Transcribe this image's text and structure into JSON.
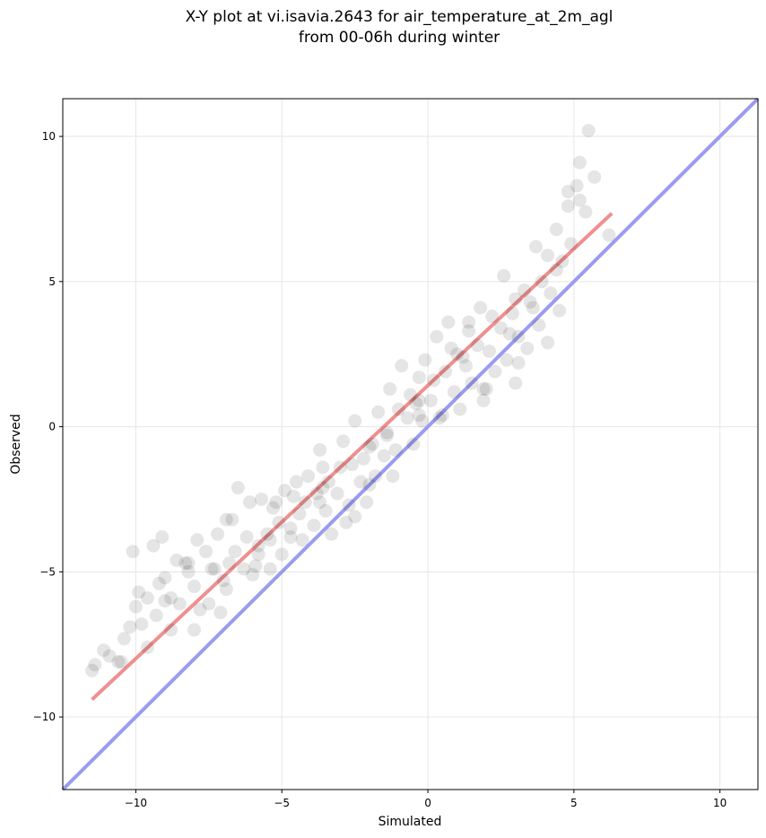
{
  "chart_data": {
    "type": "scatter",
    "title": "X-Y plot at vi.isavia.2643 for air_temperature_at_2m_agl",
    "subtitle": "from 00-06h during winter",
    "xlabel": "Simulated",
    "ylabel": "Observed",
    "xlim": [
      -12.5,
      11.3
    ],
    "ylim": [
      -12.5,
      11.3
    ],
    "xticks": [
      -10,
      -5,
      0,
      5,
      10
    ],
    "yticks": [
      -10,
      -5,
      0,
      5,
      10
    ],
    "xtick_labels": [
      "−10",
      "−5",
      "0",
      "5",
      "10"
    ],
    "ytick_labels": [
      "−10",
      "−5",
      "0",
      "5",
      "10"
    ],
    "grid": true,
    "point_color": "#000000",
    "point_alpha": 0.1,
    "series": [
      {
        "kind": "scatter",
        "x": [
          -11.5,
          -11.4,
          -11.1,
          -10.9,
          -10.6,
          -10.4,
          -10.2,
          -10.1,
          -10.0,
          -9.9,
          -9.8,
          -9.6,
          -9.4,
          -9.3,
          -9.1,
          -9.0,
          -8.8,
          -8.6,
          -8.5,
          -8.3,
          -8.2,
          -8.0,
          -7.9,
          -7.8,
          -7.6,
          -7.5,
          -7.3,
          -7.2,
          -7.0,
          -6.9,
          -6.8,
          -6.6,
          -6.5,
          -6.3,
          -6.2,
          -6.1,
          -5.9,
          -5.8,
          -5.7,
          -5.5,
          -5.4,
          -5.3,
          -5.1,
          -5.0,
          -4.9,
          -4.7,
          -4.6,
          -4.5,
          -4.3,
          -4.2,
          -4.1,
          -3.9,
          -3.8,
          -3.7,
          -3.5,
          -3.4,
          -3.3,
          -3.1,
          -3.0,
          -2.9,
          -2.7,
          -2.6,
          -2.5,
          -2.3,
          -2.2,
          -2.1,
          -1.9,
          -1.8,
          -1.7,
          -1.5,
          -1.4,
          -1.3,
          -1.1,
          -1.0,
          -0.9,
          -0.7,
          -0.6,
          -0.5,
          -0.3,
          -0.2,
          -0.1,
          0.1,
          0.2,
          0.3,
          0.5,
          0.6,
          0.7,
          0.9,
          1.0,
          1.1,
          1.3,
          1.4,
          1.5,
          1.7,
          1.8,
          1.9,
          2.1,
          2.2,
          2.3,
          2.5,
          2.6,
          2.7,
          2.9,
          3.0,
          3.1,
          3.3,
          3.4,
          3.5,
          3.7,
          3.8,
          3.9,
          4.1,
          4.2,
          4.4,
          4.5,
          4.6,
          4.8,
          4.9,
          5.1,
          5.2,
          5.4,
          5.5,
          5.7,
          6.2,
          -9.6,
          -9.0,
          -8.2,
          -7.4,
          -6.7,
          -6.0,
          -5.2,
          -4.4,
          -3.6,
          -2.8,
          -2.0,
          -1.2,
          -0.4,
          0.4,
          1.2,
          2.0,
          2.8,
          3.6,
          4.4,
          5.2,
          -10.5,
          -9.2,
          -8.0,
          -6.9,
          -5.8,
          -4.7,
          -3.6,
          -2.5,
          -1.4,
          -0.3,
          0.8,
          1.9,
          3.0,
          4.1,
          -8.8,
          -7.1,
          -5.4,
          -3.7,
          -2.0,
          -0.3,
          1.4,
          3.1,
          4.8
        ],
        "y": [
          -8.4,
          -8.2,
          -7.7,
          -7.9,
          -8.1,
          -7.3,
          -6.9,
          -4.3,
          -6.2,
          -5.7,
          -6.8,
          -5.9,
          -4.1,
          -6.5,
          -3.8,
          -5.2,
          -5.9,
          -4.6,
          -6.1,
          -4.7,
          -5.0,
          -5.5,
          -3.9,
          -6.3,
          -4.3,
          -6.1,
          -4.9,
          -3.7,
          -5.3,
          -3.2,
          -4.7,
          -4.3,
          -2.1,
          -4.9,
          -3.8,
          -2.6,
          -4.8,
          -4.1,
          -2.5,
          -3.7,
          -4.9,
          -2.8,
          -3.3,
          -4.4,
          -2.2,
          -3.8,
          -2.4,
          -1.9,
          -3.9,
          -2.6,
          -1.7,
          -3.4,
          -2.3,
          -0.8,
          -2.9,
          -1.9,
          -3.7,
          -2.3,
          -1.4,
          -0.5,
          -2.7,
          -1.3,
          0.2,
          -1.9,
          -1.1,
          -2.6,
          -0.6,
          -1.7,
          0.5,
          -1.0,
          -0.2,
          1.3,
          -0.8,
          0.6,
          2.1,
          0.3,
          1.1,
          -0.6,
          1.7,
          0.2,
          2.3,
          0.9,
          1.6,
          3.1,
          0.4,
          1.9,
          3.6,
          1.2,
          2.5,
          0.6,
          2.1,
          3.3,
          1.5,
          2.8,
          4.1,
          1.3,
          2.6,
          3.8,
          1.9,
          3.4,
          5.2,
          2.3,
          3.9,
          1.5,
          3.1,
          4.7,
          2.7,
          4.3,
          6.2,
          3.5,
          5.0,
          2.9,
          4.6,
          6.8,
          4.0,
          5.7,
          7.6,
          6.3,
          8.3,
          9.1,
          7.4,
          10.2,
          8.6,
          6.6,
          -7.6,
          -6.0,
          -4.7,
          -4.9,
          -3.2,
          -5.1,
          -2.6,
          -3.0,
          -1.4,
          -3.3,
          -0.7,
          -1.7,
          0.8,
          0.3,
          2.4,
          1.3,
          3.2,
          4.1,
          5.4,
          7.8,
          -8.1,
          -5.4,
          -7.0,
          -5.6,
          -4.4,
          -3.5,
          -2.1,
          -3.1,
          -0.3,
          0.4,
          2.7,
          0.9,
          4.4,
          5.9,
          -7.0,
          -6.4,
          -3.9,
          -2.6,
          -2.0,
          0.9,
          3.6,
          2.2,
          8.1
        ]
      },
      {
        "kind": "line",
        "name": "",
        "color": "#ef8f8f",
        "x": [
          -11.5,
          6.3
        ],
        "y": [
          -9.4,
          7.35
        ]
      },
      {
        "kind": "line",
        "name": "",
        "color": "#9b9bf0",
        "x": [
          -12.5,
          11.3
        ],
        "y": [
          -12.5,
          11.3
        ]
      }
    ]
  }
}
